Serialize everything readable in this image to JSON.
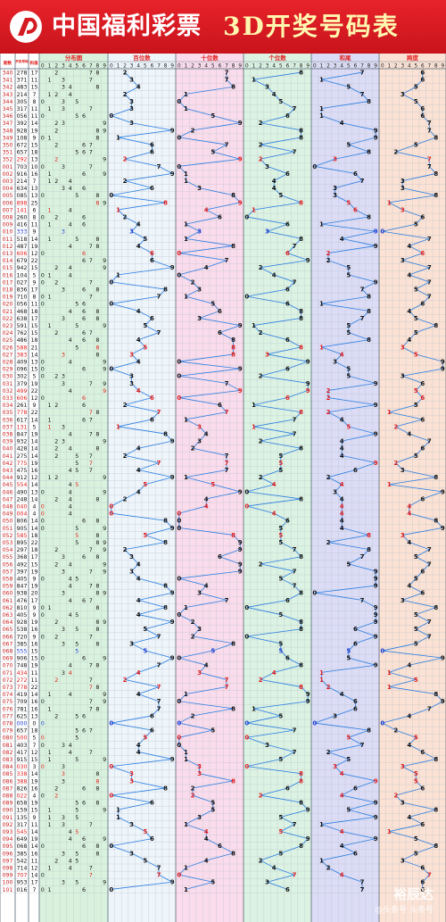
{
  "brand": "中国福利彩票",
  "title": "3D开奖号码表",
  "watermark": {
    "line1": "裕辰达",
    "line2": "@头条号 头条号"
  },
  "colors": {
    "banner": "#d41b22",
    "line": "#2a7de1",
    "red": "#e02020",
    "blue": "#1f3fd1",
    "dist_bg": "#d9f2dd",
    "bai_bg": "#eef5fb",
    "shi_bg": "#fadcec",
    "ge_bg": "#dcf3e3",
    "hewei_bg": "#dcdcf6",
    "kuadu_bg": "#fbe2d4"
  },
  "header": {
    "period": "期数",
    "open_number": "开奖号码",
    "sum": "和值",
    "sections": [
      "分布图",
      "百位数",
      "十位数",
      "个位数",
      "和尾",
      "跨度"
    ]
  },
  "chart_data": {
    "type": "table",
    "digit_columns": [
      "0",
      "1",
      "2",
      "3",
      "4",
      "5",
      "6",
      "7",
      "8",
      "9"
    ],
    "draws": [
      [
        "340",
        "278",
        17
      ],
      [
        "341",
        "371",
        11
      ],
      [
        "342",
        "483",
        15
      ],
      [
        "343",
        "214",
        7
      ],
      [
        "344",
        "305",
        8
      ],
      [
        "345",
        "317",
        11
      ],
      [
        "346",
        "056",
        11
      ],
      [
        "347",
        "392",
        14
      ],
      [
        "348",
        "928",
        19
      ],
      [
        "349",
        "108",
        9
      ],
      [
        "350",
        "672",
        15
      ],
      [
        "351",
        "657",
        18
      ],
      [
        "352",
        "292",
        13
      ],
      [
        "001",
        "703",
        10
      ],
      [
        "002",
        "916",
        16
      ],
      [
        "003",
        "214",
        7
      ],
      [
        "004",
        "634",
        13
      ],
      [
        "005",
        "085",
        13
      ],
      [
        "006",
        "898",
        25
      ],
      [
        "007",
        "141",
        6
      ],
      [
        "008",
        "260",
        8
      ],
      [
        "009",
        "416",
        11
      ],
      [
        "010",
        "333",
        9
      ],
      [
        "011",
        "518",
        14
      ],
      [
        "012",
        "487",
        19
      ],
      [
        "013",
        "606",
        12
      ],
      [
        "014",
        "679",
        22
      ],
      [
        "015",
        "942",
        15
      ],
      [
        "016",
        "104",
        5
      ],
      [
        "017",
        "027",
        9
      ],
      [
        "018",
        "836",
        17
      ],
      [
        "019",
        "710",
        8
      ],
      [
        "020",
        "056",
        11
      ],
      [
        "021",
        "468",
        18
      ],
      [
        "022",
        "638",
        17
      ],
      [
        "023",
        "591",
        15
      ],
      [
        "024",
        "762",
        15
      ],
      [
        "025",
        "486",
        18
      ],
      [
        "026",
        "588",
        21
      ],
      [
        "027",
        "383",
        14
      ],
      [
        "028",
        "409",
        13
      ],
      [
        "029",
        "096",
        15
      ],
      [
        "030",
        "302",
        5
      ],
      [
        "031",
        "379",
        19
      ],
      [
        "032",
        "499",
        22
      ],
      [
        "033",
        "606",
        12
      ],
      [
        "034",
        "261",
        9
      ],
      [
        "035",
        "778",
        22
      ],
      [
        "036",
        "617",
        14
      ],
      [
        "037",
        "131",
        5
      ],
      [
        "038",
        "847",
        19
      ],
      [
        "039",
        "932",
        14
      ],
      [
        "040",
        "428",
        14
      ],
      [
        "041",
        "275",
        14
      ],
      [
        "042",
        "775",
        19
      ],
      [
        "043",
        "475",
        16
      ],
      [
        "044",
        "912",
        12
      ],
      [
        "045",
        "554",
        14
      ],
      [
        "046",
        "490",
        13
      ],
      [
        "047",
        "248",
        14
      ],
      [
        "048",
        "040",
        4
      ],
      [
        "049",
        "004",
        4
      ],
      [
        "050",
        "806",
        14
      ],
      [
        "051",
        "905",
        14
      ],
      [
        "052",
        "585",
        18
      ],
      [
        "053",
        "895",
        22
      ],
      [
        "054",
        "297",
        18
      ],
      [
        "055",
        "368",
        17
      ],
      [
        "056",
        "492",
        15
      ],
      [
        "057",
        "397",
        19
      ],
      [
        "058",
        "405",
        9
      ],
      [
        "059",
        "847",
        19
      ],
      [
        "060",
        "938",
        20
      ],
      [
        "061",
        "476",
        17
      ],
      [
        "062",
        "810",
        9
      ],
      [
        "063",
        "405",
        9
      ],
      [
        "064",
        "928",
        19
      ],
      [
        "065",
        "538",
        16
      ],
      [
        "066",
        "720",
        9
      ],
      [
        "067",
        "385",
        16
      ],
      [
        "068",
        "555",
        15
      ],
      [
        "069",
        "906",
        15
      ],
      [
        "070",
        "748",
        19
      ],
      [
        "071",
        "434",
        11
      ],
      [
        "072",
        "272",
        11
      ],
      [
        "073",
        "778",
        22
      ],
      [
        "074",
        "419",
        14
      ],
      [
        "075",
        "709",
        16
      ],
      [
        "076",
        "781",
        16
      ],
      [
        "077",
        "625",
        13
      ],
      [
        "078",
        "000",
        0
      ],
      [
        "079",
        "657",
        18
      ],
      [
        "080",
        "500",
        5
      ],
      [
        "081",
        "403",
        7
      ],
      [
        "082",
        "417",
        12
      ],
      [
        "083",
        "915",
        15
      ],
      [
        "084",
        "030",
        3
      ],
      [
        "085",
        "338",
        14
      ],
      [
        "086",
        "388",
        19
      ],
      [
        "087",
        "826",
        16
      ],
      [
        "088",
        "022",
        4
      ],
      [
        "089",
        "658",
        19
      ],
      [
        "090",
        "159",
        15
      ],
      [
        "091",
        "135",
        9
      ],
      [
        "092",
        "317",
        11
      ],
      [
        "093",
        "545",
        14
      ],
      [
        "094",
        "649",
        19
      ],
      [
        "095",
        "068",
        14
      ],
      [
        "096",
        "385",
        16
      ],
      [
        "097",
        "542",
        11
      ],
      [
        "098",
        "714",
        12
      ],
      [
        "099",
        "707",
        14
      ],
      [
        "100",
        "953",
        17
      ],
      [
        "101",
        "016",
        7
      ]
    ]
  }
}
